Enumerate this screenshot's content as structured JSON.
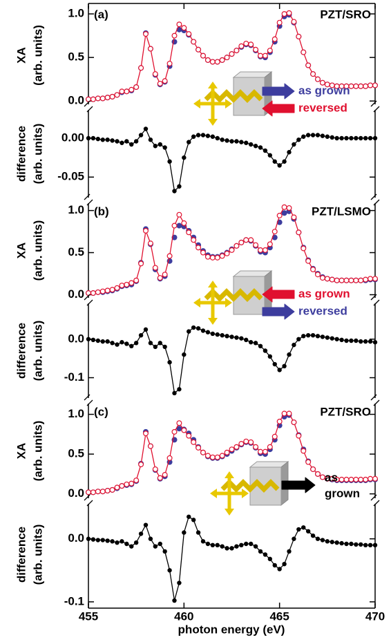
{
  "x_axis": {
    "label": "photon energy (eV)",
    "xlim": [
      455,
      470
    ],
    "xticks": [
      455,
      460,
      465,
      470
    ]
  },
  "chart_data": [
    {
      "type": "scatter",
      "panel_label": "(a)",
      "sample": "PZT/SRO",
      "x": [
        455,
        455.25,
        455.5,
        455.75,
        456,
        456.25,
        456.5,
        456.75,
        457,
        457.25,
        457.5,
        457.75,
        458,
        458.25,
        458.5,
        458.75,
        459,
        459.25,
        459.5,
        459.75,
        460,
        460.25,
        460.5,
        460.75,
        461,
        461.25,
        461.5,
        461.75,
        462,
        462.25,
        462.5,
        462.75,
        463,
        463.25,
        463.5,
        463.75,
        464,
        464.25,
        464.5,
        464.75,
        465,
        465.25,
        465.5,
        465.75,
        466,
        466.25,
        466.5,
        466.75,
        467,
        467.25,
        467.5,
        467.75,
        468,
        468.25,
        468.5,
        468.75,
        469,
        469.25,
        469.5,
        469.75,
        470
      ],
      "xa": {
        "ylabel": [
          "XA",
          "(arb. units)"
        ],
        "ylim": [
          -0.07,
          1.12
        ],
        "yticks": [
          {
            "value": 0,
            "label": "0.0"
          },
          0.5,
          {
            "value": 1,
            "label": "1.0"
          }
        ],
        "series": [
          {
            "name": "as grown",
            "color": "#3d3d9e",
            "marker": "filled",
            "values": [
              0.02,
              0.02,
              0.03,
              0.03,
              0.04,
              0.05,
              0.07,
              0.1,
              0.11,
              0.12,
              0.16,
              0.38,
              0.78,
              0.6,
              0.3,
              0.19,
              0.22,
              0.4,
              0.68,
              0.82,
              0.81,
              0.76,
              0.68,
              0.59,
              0.52,
              0.47,
              0.45,
              0.45,
              0.47,
              0.5,
              0.54,
              0.58,
              0.62,
              0.65,
              0.64,
              0.58,
              0.51,
              0.5,
              0.56,
              0.68,
              0.86,
              0.97,
              0.99,
              0.9,
              0.74,
              0.56,
              0.41,
              0.31,
              0.25,
              0.21,
              0.19,
              0.18,
              0.17,
              0.17,
              0.17,
              0.17,
              0.17,
              0.17,
              0.17,
              0.18,
              0.18
            ]
          },
          {
            "name": "reversed",
            "color": "#e0102f",
            "marker": "open",
            "values": [
              0.02,
              0.02,
              0.03,
              0.03,
              0.04,
              0.05,
              0.07,
              0.11,
              0.11,
              0.13,
              0.16,
              0.38,
              0.77,
              0.6,
              0.31,
              0.2,
              0.23,
              0.43,
              0.75,
              0.88,
              0.84,
              0.77,
              0.68,
              0.59,
              0.52,
              0.47,
              0.45,
              0.45,
              0.47,
              0.5,
              0.54,
              0.58,
              0.63,
              0.66,
              0.65,
              0.59,
              0.52,
              0.52,
              0.58,
              0.71,
              0.9,
              1.0,
              1.01,
              0.91,
              0.74,
              0.56,
              0.41,
              0.31,
              0.25,
              0.21,
              0.19,
              0.18,
              0.17,
              0.17,
              0.17,
              0.17,
              0.17,
              0.17,
              0.17,
              0.18,
              0.18
            ]
          }
        ]
      },
      "difference": {
        "ylabel": [
          "difference",
          "(arb. units)"
        ],
        "ylim": [
          -0.08,
          0.04
        ],
        "yticks": [
          {
            "value": 0,
            "label": "0.00"
          },
          -0.05
        ],
        "color": "#000000",
        "values": [
          0,
          0,
          -0.001,
          -0.002,
          -0.002,
          -0.003,
          -0.004,
          -0.006,
          -0.004,
          -0.008,
          -0.004,
          0.004,
          0.012,
          -0.002,
          -0.01,
          -0.008,
          -0.012,
          -0.03,
          -0.068,
          -0.062,
          -0.025,
          -0.005,
          0.002,
          0.004,
          0.004,
          0.003,
          0.002,
          0,
          -0.002,
          -0.003,
          -0.004,
          -0.004,
          -0.005,
          -0.006,
          -0.008,
          -0.01,
          -0.012,
          -0.016,
          -0.022,
          -0.03,
          -0.035,
          -0.03,
          -0.018,
          -0.008,
          -0.002,
          0.002,
          0.004,
          0.004,
          0.004,
          0.003,
          0.002,
          0.001,
          0,
          0,
          0,
          0,
          0,
          0,
          0,
          0,
          0
        ]
      }
    },
    {
      "type": "scatter",
      "panel_label": "(b)",
      "sample": "PZT/LSMO",
      "x": [
        455,
        455.25,
        455.5,
        455.75,
        456,
        456.25,
        456.5,
        456.75,
        457,
        457.25,
        457.5,
        457.75,
        458,
        458.25,
        458.5,
        458.75,
        459,
        459.25,
        459.5,
        459.75,
        460,
        460.25,
        460.5,
        460.75,
        461,
        461.25,
        461.5,
        461.75,
        462,
        462.25,
        462.5,
        462.75,
        463,
        463.25,
        463.5,
        463.75,
        464,
        464.25,
        464.5,
        464.75,
        465,
        465.25,
        465.5,
        465.75,
        466,
        466.25,
        466.5,
        466.75,
        467,
        467.25,
        467.5,
        467.75,
        468,
        468.25,
        468.5,
        468.75,
        469,
        469.25,
        469.5,
        469.75,
        470
      ],
      "xa": {
        "ylabel": [
          "XA",
          "(arb. units)"
        ],
        "ylim": [
          -0.07,
          1.12
        ],
        "yticks": [
          {
            "value": 0,
            "label": "0.0"
          },
          0.5,
          {
            "value": 1,
            "label": "1.0"
          }
        ],
        "series": [
          {
            "name": "as grown",
            "color": "#e0102f",
            "marker": "open",
            "values": [
              0.02,
              0.02,
              0.03,
              0.04,
              0.05,
              0.06,
              0.08,
              0.11,
              0.12,
              0.14,
              0.17,
              0.37,
              0.76,
              0.61,
              0.32,
              0.2,
              0.24,
              0.46,
              0.82,
              0.95,
              0.85,
              0.74,
              0.65,
              0.56,
              0.5,
              0.45,
              0.44,
              0.44,
              0.46,
              0.49,
              0.53,
              0.58,
              0.62,
              0.65,
              0.65,
              0.59,
              0.53,
              0.53,
              0.6,
              0.75,
              0.94,
              1.04,
              1.03,
              0.92,
              0.74,
              0.55,
              0.4,
              0.3,
              0.24,
              0.2,
              0.19,
              0.18,
              0.17,
              0.17,
              0.17,
              0.17,
              0.17,
              0.17,
              0.18,
              0.19,
              0.19
            ]
          },
          {
            "name": "reversed",
            "color": "#3d3d9e",
            "marker": "filled",
            "values": [
              0.02,
              0.02,
              0.03,
              0.03,
              0.04,
              0.05,
              0.07,
              0.1,
              0.11,
              0.12,
              0.16,
              0.38,
              0.78,
              0.6,
              0.3,
              0.19,
              0.22,
              0.4,
              0.68,
              0.82,
              0.81,
              0.76,
              0.68,
              0.59,
              0.52,
              0.47,
              0.45,
              0.45,
              0.47,
              0.5,
              0.54,
              0.58,
              0.62,
              0.65,
              0.64,
              0.58,
              0.51,
              0.5,
              0.56,
              0.68,
              0.86,
              0.97,
              0.99,
              0.9,
              0.74,
              0.56,
              0.41,
              0.31,
              0.25,
              0.21,
              0.19,
              0.18,
              0.17,
              0.17,
              0.17,
              0.17,
              0.17,
              0.17,
              0.17,
              0.18,
              0.18
            ]
          }
        ]
      },
      "difference": {
        "ylabel": [
          "difference",
          "(arb. units)"
        ],
        "ylim": [
          -0.16,
          0.1
        ],
        "yticks": [
          {
            "value": 0,
            "label": "0.0"
          },
          -0.1
        ],
        "color": "#000000",
        "values": [
          0,
          -0.002,
          -0.004,
          -0.006,
          -0.006,
          -0.01,
          -0.014,
          -0.008,
          -0.012,
          -0.018,
          -0.01,
          0.01,
          0.025,
          -0.01,
          -0.02,
          -0.01,
          -0.02,
          -0.06,
          -0.14,
          -0.13,
          -0.04,
          0.02,
          0.03,
          0.028,
          0.022,
          0.018,
          0.014,
          0.012,
          0.01,
          0.008,
          0.006,
          0.004,
          0.002,
          -0.002,
          -0.008,
          -0.01,
          -0.018,
          -0.03,
          -0.045,
          -0.065,
          -0.08,
          -0.07,
          -0.04,
          -0.015,
          0,
          0.008,
          0.01,
          0.01,
          0.008,
          0.006,
          0.004,
          0.002,
          0,
          -0.002,
          -0.004,
          -0.004,
          -0.004,
          -0.006,
          -0.006,
          -0.006,
          -0.008
        ]
      }
    },
    {
      "type": "scatter",
      "panel_label": "(c)",
      "sample": "PZT/SRO",
      "annotation_lines": [
        "as",
        "grown"
      ],
      "annotation_color": "#000000",
      "x": [
        455,
        455.25,
        455.5,
        455.75,
        456,
        456.25,
        456.5,
        456.75,
        457,
        457.25,
        457.5,
        457.75,
        458,
        458.25,
        458.5,
        458.75,
        459,
        459.25,
        459.5,
        459.75,
        460,
        460.25,
        460.5,
        460.75,
        461,
        461.25,
        461.5,
        461.75,
        462,
        462.25,
        462.5,
        462.75,
        463,
        463.25,
        463.5,
        463.75,
        464,
        464.25,
        464.5,
        464.75,
        465,
        465.25,
        465.5,
        465.75,
        466,
        466.25,
        466.5,
        466.75,
        467,
        467.25,
        467.5,
        467.75,
        468,
        468.25,
        468.5,
        468.75,
        469,
        469.25,
        469.5,
        469.75,
        470
      ],
      "xa": {
        "ylabel": [
          "XA",
          "(arb. units)"
        ],
        "ylim": [
          -0.09,
          1.17
        ],
        "yticks": [
          {
            "value": 0,
            "label": "0.0"
          },
          0.5,
          {
            "value": 1,
            "label": "1.0"
          }
        ],
        "series": [
          {
            "color": "#3d3d9e",
            "marker": "filled",
            "values": [
              0.02,
              0.02,
              0.03,
              0.03,
              0.04,
              0.05,
              0.07,
              0.1,
              0.11,
              0.12,
              0.16,
              0.38,
              0.78,
              0.6,
              0.3,
              0.19,
              0.22,
              0.4,
              0.68,
              0.82,
              0.81,
              0.76,
              0.68,
              0.59,
              0.52,
              0.47,
              0.45,
              0.45,
              0.47,
              0.5,
              0.54,
              0.58,
              0.62,
              0.65,
              0.64,
              0.58,
              0.51,
              0.5,
              0.56,
              0.68,
              0.86,
              0.97,
              0.99,
              0.9,
              0.74,
              0.56,
              0.41,
              0.31,
              0.25,
              0.21,
              0.19,
              0.18,
              0.17,
              0.17,
              0.17,
              0.17,
              0.17,
              0.17,
              0.17,
              0.18,
              0.18
            ]
          },
          {
            "color": "#e0102f",
            "marker": "open",
            "values": [
              0.02,
              0.02,
              0.03,
              0.03,
              0.04,
              0.05,
              0.08,
              0.1,
              0.12,
              0.13,
              0.17,
              0.37,
              0.76,
              0.6,
              0.31,
              0.2,
              0.24,
              0.45,
              0.78,
              0.89,
              0.8,
              0.73,
              0.65,
              0.58,
              0.52,
              0.48,
              0.46,
              0.46,
              0.48,
              0.52,
              0.56,
              0.59,
              0.63,
              0.66,
              0.65,
              0.59,
              0.53,
              0.53,
              0.59,
              0.72,
              0.91,
              1.01,
              1.01,
              0.9,
              0.73,
              0.54,
              0.4,
              0.31,
              0.25,
              0.21,
              0.19,
              0.19,
              0.18,
              0.18,
              0.18,
              0.18,
              0.18,
              0.18,
              0.18,
              0.19,
              0.19
            ]
          }
        ]
      },
      "difference": {
        "ylabel": [
          "difference",
          "(arb. units)"
        ],
        "ylim": [
          -0.11,
          0.06
        ],
        "yticks": [
          {
            "value": 0,
            "label": "0.0"
          },
          -0.1
        ],
        "color": "#000000",
        "values": [
          0,
          -0.001,
          -0.002,
          -0.002,
          -0.003,
          -0.004,
          -0.006,
          -0.004,
          -0.008,
          -0.012,
          -0.006,
          0.008,
          0.022,
          0,
          -0.012,
          -0.008,
          -0.02,
          -0.05,
          -0.098,
          -0.07,
          0.01,
          0.035,
          0.03,
          0.01,
          -0.004,
          -0.008,
          -0.01,
          -0.01,
          -0.012,
          -0.015,
          -0.015,
          -0.012,
          -0.01,
          -0.008,
          -0.008,
          -0.012,
          -0.02,
          -0.025,
          -0.032,
          -0.042,
          -0.048,
          -0.04,
          -0.02,
          0,
          0.015,
          0.018,
          0.012,
          0.005,
          0,
          -0.002,
          -0.004,
          -0.005,
          -0.006,
          -0.007,
          -0.008,
          -0.008,
          -0.009,
          -0.009,
          -0.01,
          -0.01,
          -0.01
        ]
      }
    }
  ]
}
